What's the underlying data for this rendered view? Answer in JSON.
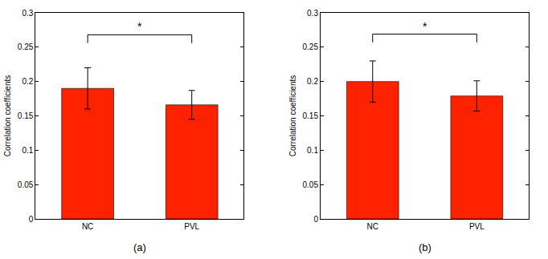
{
  "chart_data": [
    {
      "type": "bar",
      "caption": "(a)",
      "y_label": "Correlation coefficients",
      "categories": [
        "NC",
        "PVL"
      ],
      "values": [
        0.19,
        0.166
      ],
      "errors": [
        0.03,
        0.021
      ],
      "color": "#ff2200",
      "ylim": [
        0,
        0.3
      ],
      "yticks": [
        0,
        0.05,
        0.1,
        0.15,
        0.2,
        0.25,
        0.3
      ],
      "grid": false,
      "annotations": [
        {
          "text": "*",
          "from": "NC",
          "to": "PVL",
          "y": 0.268
        }
      ]
    },
    {
      "type": "bar",
      "caption": "(b)",
      "y_label": "Correlation coefficients",
      "categories": [
        "NC",
        "PVL"
      ],
      "values": [
        0.2,
        0.179
      ],
      "errors": [
        0.03,
        0.022
      ],
      "color": "#ff2200",
      "ylim": [
        0,
        0.3
      ],
      "yticks": [
        0,
        0.05,
        0.1,
        0.15,
        0.2,
        0.25,
        0.3
      ],
      "grid": false,
      "annotations": [
        {
          "text": "*",
          "from": "NC",
          "to": "PVL",
          "y": 0.269
        }
      ]
    }
  ]
}
